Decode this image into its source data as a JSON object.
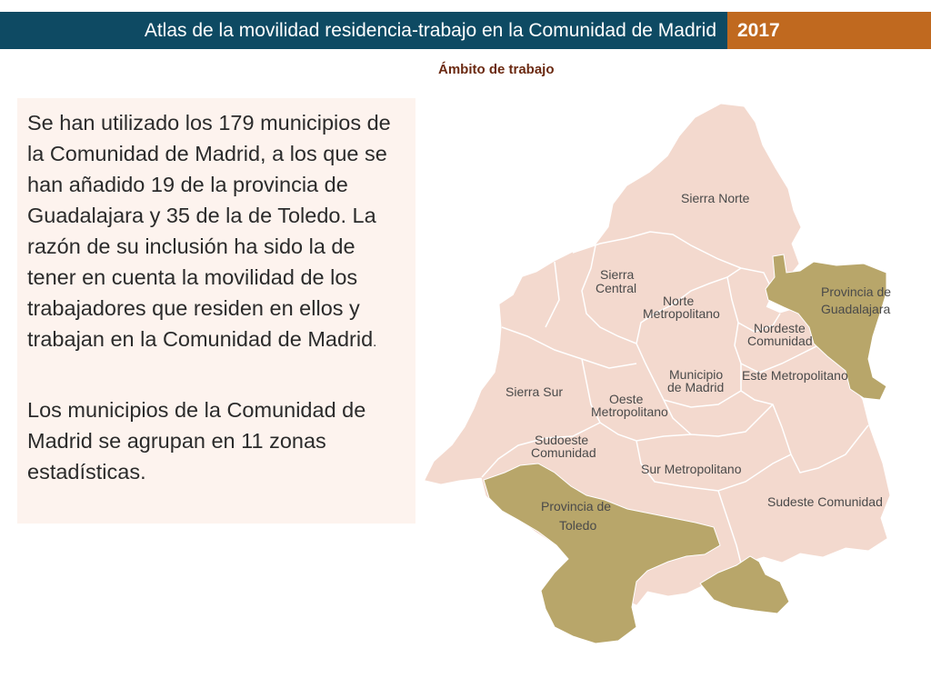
{
  "header": {
    "title": "Atlas de la movilidad residencia-trabajo en la Comunidad de Madrid",
    "year": "2017"
  },
  "subtitle": "Ámbito de trabajo",
  "text": {
    "p1_main": "Se han utilizado los 179 municipios de la Comunidad de Madrid, a los que se han añadido 19 de la provincia de Guadalajara y 35 de la de Toledo. La razón de su inclusión ha sido la de tener en cuenta la movilidad de los trabajadores que residen en ellos y trabajan en la Comunidad de Madrid",
    "p1_period": ".",
    "p2": "Los municipios de la Comunidad de Madrid se agrupan en 11  zonas estadísticas."
  },
  "map": {
    "colors": {
      "madrid": "#f3d9ce",
      "province": "#b8a66a",
      "border": "#ffffff"
    },
    "labels": {
      "sierra_norte": "Sierra Norte",
      "sierra_central_1": "Sierra",
      "sierra_central_2": "Central",
      "norte_metro_1": "Norte",
      "norte_metro_2": "Metropolitano",
      "nordeste_1": "Nordeste",
      "nordeste_2": "Comunidad",
      "guadalajara_1": "Provincia de",
      "guadalajara_2": "Guadalajara",
      "municipio_1": "Municipio",
      "municipio_2": "de Madrid",
      "este_metro": "Este Metropolitano",
      "sierra_sur": "Sierra Sur",
      "oeste_1": "Oeste",
      "oeste_2": "Metropolitano",
      "sudoeste_1": "Sudoeste",
      "sudoeste_2": "Comunidad",
      "sur_metro": "Sur Metropolitano",
      "sudeste": "Sudeste Comunidad",
      "toledo_1": "Provincia de",
      "toledo_2": "Toledo"
    }
  }
}
